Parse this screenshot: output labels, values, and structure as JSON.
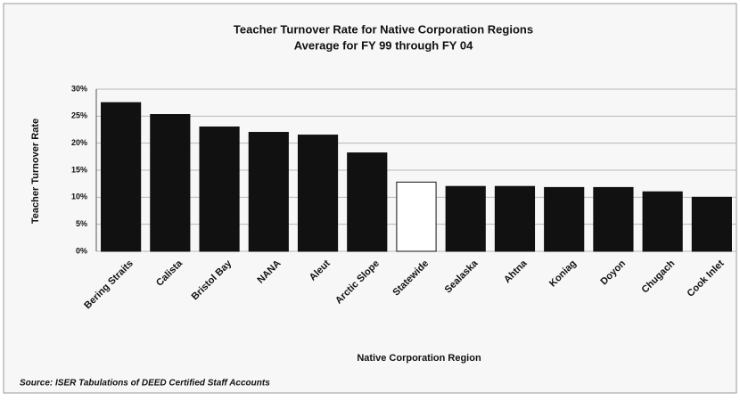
{
  "chart_data": {
    "type": "bar",
    "title": "Teacher Turnover Rate for Native Corporation Regions",
    "subtitle": "Average for FY 99 through FY 04",
    "y_label": "Teacher Turnover Rate",
    "x_label": "Native Corporation Region",
    "source": "Source: ISER Tabulations of DEED Certified Staff Accounts",
    "categories": [
      "Bering Straits",
      "Calista",
      "Bristol Bay",
      "NANA",
      "Aleut",
      "Arctic Slope",
      "Statewide",
      "Sealaska",
      "Ahtna",
      "Koniag",
      "Doyon",
      "Chugach",
      "Cook Inlet"
    ],
    "values": [
      27.5,
      25.3,
      23,
      22,
      21.5,
      18.2,
      12.8,
      12,
      12,
      11.8,
      11.8,
      11,
      10
    ],
    "colors": [
      "#111111",
      "#111111",
      "#111111",
      "#111111",
      "#111111",
      "#111111",
      "#ffffff",
      "#111111",
      "#111111",
      "#111111",
      "#111111",
      "#111111",
      "#111111"
    ],
    "ylim": [
      0,
      30
    ],
    "yticks": [
      {
        "value": 0,
        "label": "0%"
      },
      {
        "value": 5,
        "label": "5%"
      },
      {
        "value": 10,
        "label": "10%"
      },
      {
        "value": 15,
        "label": "15%"
      },
      {
        "value": 20,
        "label": "20%"
      },
      {
        "value": 25,
        "label": "25%"
      },
      {
        "value": 30,
        "label": "30%"
      }
    ],
    "grid": true
  }
}
